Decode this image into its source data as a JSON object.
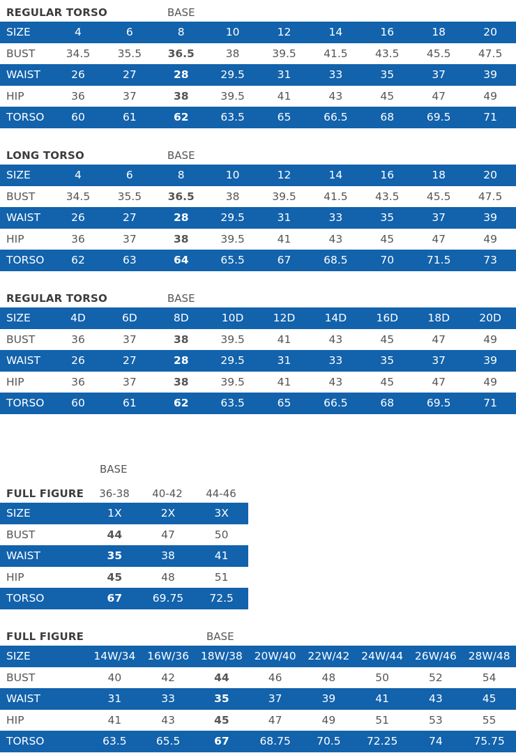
{
  "tables": [
    {
      "title": "REGULAR TORSO",
      "base_label": "BASE",
      "rows": [
        {
          "label": "SIZE",
          "values": [
            "4",
            "6",
            "8",
            "10",
            "12",
            "14",
            "16",
            "18",
            "20"
          ]
        },
        {
          "label": "BUST",
          "values": [
            "34.5",
            "35.5",
            "36.5",
            "38",
            "39.5",
            "41.5",
            "43.5",
            "45.5",
            "47.5"
          ]
        },
        {
          "label": "WAIST",
          "values": [
            "26",
            "27",
            "28",
            "29.5",
            "31",
            "33",
            "35",
            "37",
            "39"
          ]
        },
        {
          "label": "HIP",
          "values": [
            "36",
            "37",
            "38",
            "39.5",
            "41",
            "43",
            "45",
            "47",
            "49"
          ]
        },
        {
          "label": "TORSO",
          "values": [
            "60",
            "61",
            "62",
            "63.5",
            "65",
            "66.5",
            "68",
            "69.5",
            "71"
          ]
        }
      ]
    },
    {
      "title": "LONG TORSO",
      "base_label": "BASE",
      "rows": [
        {
          "label": "SIZE",
          "values": [
            "4",
            "6",
            "8",
            "10",
            "12",
            "14",
            "16",
            "18",
            "20"
          ]
        },
        {
          "label": "BUST",
          "values": [
            "34.5",
            "35.5",
            "36.5",
            "38",
            "39.5",
            "41.5",
            "43.5",
            "45.5",
            "47.5"
          ]
        },
        {
          "label": "WAIST",
          "values": [
            "26",
            "27",
            "28",
            "29.5",
            "31",
            "33",
            "35",
            "37",
            "39"
          ]
        },
        {
          "label": "HIP",
          "values": [
            "36",
            "37",
            "38",
            "39.5",
            "41",
            "43",
            "45",
            "47",
            "49"
          ]
        },
        {
          "label": "TORSO",
          "values": [
            "62",
            "63",
            "64",
            "65.5",
            "67",
            "68.5",
            "70",
            "71.5",
            "73"
          ]
        }
      ]
    },
    {
      "title": "REGULAR TORSO",
      "base_label": "BASE",
      "rows": [
        {
          "label": "SIZE",
          "values": [
            "4D",
            "6D",
            "8D",
            "10D",
            "12D",
            "14D",
            "16D",
            "18D",
            "20D"
          ]
        },
        {
          "label": "BUST",
          "values": [
            "36",
            "37",
            "38",
            "39.5",
            "41",
            "43",
            "45",
            "47",
            "49"
          ]
        },
        {
          "label": "WAIST",
          "values": [
            "26",
            "27",
            "28",
            "29.5",
            "31",
            "33",
            "35",
            "37",
            "39"
          ]
        },
        {
          "label": "HIP",
          "values": [
            "36",
            "37",
            "38",
            "39.5",
            "41",
            "43",
            "45",
            "47",
            "49"
          ]
        },
        {
          "label": "TORSO",
          "values": [
            "60",
            "61",
            "62",
            "63.5",
            "65",
            "66.5",
            "68",
            "69.5",
            "71"
          ]
        }
      ]
    },
    {
      "title": "FULL FIGURE",
      "base_label": "BASE",
      "size_ranges": [
        "36-38",
        "40-42",
        "44-46"
      ],
      "rows": [
        {
          "label": "SIZE",
          "values": [
            "1X",
            "2X",
            "3X"
          ]
        },
        {
          "label": "BUST",
          "values": [
            "44",
            "47",
            "50"
          ]
        },
        {
          "label": "WAIST",
          "values": [
            "35",
            "38",
            "41"
          ]
        },
        {
          "label": "HIP",
          "values": [
            "45",
            "48",
            "51"
          ]
        },
        {
          "label": "TORSO",
          "values": [
            "67",
            "69.75",
            "72.5"
          ]
        }
      ]
    },
    {
      "title": "FULL FIGURE",
      "base_label": "BASE",
      "rows": [
        {
          "label": "SIZE",
          "values": [
            "14W/34",
            "16W/36",
            "18W/38",
            "20W/40",
            "22W/42",
            "24W/44",
            "26W/46",
            "28W/48"
          ]
        },
        {
          "label": "BUST",
          "values": [
            "40",
            "42",
            "44",
            "46",
            "48",
            "50",
            "52",
            "54"
          ]
        },
        {
          "label": "WAIST",
          "values": [
            "31",
            "33",
            "35",
            "37",
            "39",
            "41",
            "43",
            "45"
          ]
        },
        {
          "label": "HIP",
          "values": [
            "41",
            "43",
            "45",
            "47",
            "49",
            "51",
            "53",
            "55"
          ]
        },
        {
          "label": "TORSO",
          "values": [
            "63.5",
            "65.5",
            "67",
            "68.75",
            "70.5",
            "72.25",
            "74",
            "75.75"
          ]
        }
      ]
    }
  ],
  "colors": {
    "band": "#1262ac",
    "text": "#555555"
  }
}
